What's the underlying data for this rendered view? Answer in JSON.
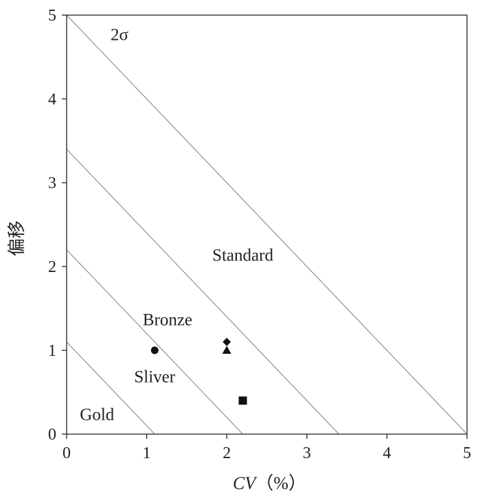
{
  "chart_data": {
    "type": "scatter",
    "title": "",
    "xlabel": "CV（%）",
    "xlabel_var": "CV",
    "xlabel_unit": "（%）",
    "ylabel": "偏移",
    "xlim": [
      0,
      5
    ],
    "ylim": [
      0,
      5
    ],
    "x_ticks": [
      "0",
      "1",
      "2",
      "3",
      "4",
      "5"
    ],
    "y_ticks": [
      "0",
      "1",
      "2",
      "3",
      "4",
      "5"
    ],
    "grid": false,
    "lines": [
      {
        "label": "Gold",
        "x": [
          0,
          1.1
        ],
        "y": [
          1.1,
          0
        ]
      },
      {
        "label": "Sliver",
        "x": [
          0,
          2.2
        ],
        "y": [
          2.2,
          0
        ]
      },
      {
        "label": "Bronze",
        "x": [
          0,
          3.4
        ],
        "y": [
          3.4,
          0
        ]
      },
      {
        "label": "Standard",
        "x": [
          0,
          5
        ],
        "y": [
          5,
          0
        ]
      }
    ],
    "region_labels": [
      {
        "text": "Gold",
        "x": 0.38,
        "y": 0.17
      },
      {
        "text": "Sliver",
        "x": 1.1,
        "y": 0.62
      },
      {
        "text": "Bronze",
        "x": 1.26,
        "y": 1.3
      },
      {
        "text": "Standard",
        "x": 2.2,
        "y": 2.07
      },
      {
        "text": "2σ",
        "x": 0.66,
        "y": 4.7
      }
    ],
    "points": [
      {
        "marker": "circle",
        "x": 1.1,
        "y": 1.0
      },
      {
        "marker": "diamond",
        "x": 2.0,
        "y": 1.1
      },
      {
        "marker": "triangle",
        "x": 2.0,
        "y": 1.0
      },
      {
        "marker": "square",
        "x": 2.2,
        "y": 0.4
      }
    ],
    "colors": {
      "frame": "#222222",
      "lines": "#888888",
      "markers": "#111111"
    }
  }
}
